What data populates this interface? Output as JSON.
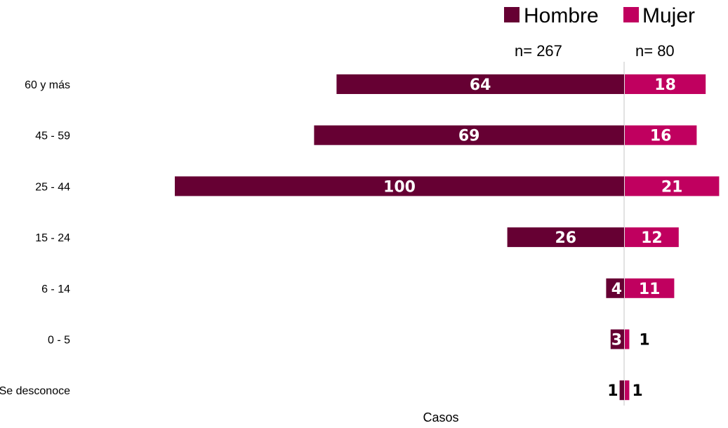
{
  "chart_data": {
    "type": "bar",
    "orientation": "horizontal-diverging",
    "categories": [
      "60 y más",
      "45 - 59",
      "25 - 44",
      "15 - 24",
      "6 - 14",
      "0 - 5",
      "Se desconoce"
    ],
    "series": [
      {
        "name": "Hombre",
        "n_label": "n= 267",
        "color": "#660033",
        "values": [
          64,
          69,
          100,
          26,
          4,
          3,
          1
        ]
      },
      {
        "name": "Mujer",
        "n_label": "n= 80",
        "color": "#C0005F",
        "values": [
          18,
          16,
          21,
          12,
          11,
          1,
          1
        ]
      }
    ],
    "xlabel": "Casos",
    "ylabel": "",
    "legend_position": "top-right",
    "grid": false,
    "axis_line_color": "#D9D9D9"
  }
}
